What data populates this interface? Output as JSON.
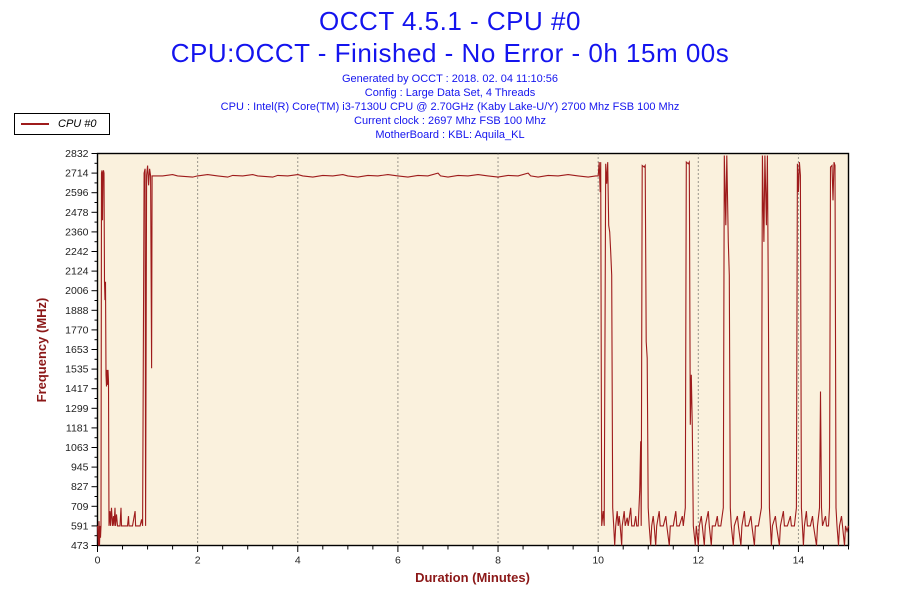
{
  "header": {
    "title": "OCCT 4.5.1 - CPU #0",
    "subtitle": "CPU:OCCT - Finished - No Error - 0h 15m 00s",
    "info_lines": [
      "Generated by OCCT : 2018. 02. 04 11:10:56",
      "Config : Large Data Set, 4 Threads",
      "CPU : Intel(R) Core(TM) i3-7130U CPU @ 2.70GHz (Kaby Lake-U/Y) 2700 Mhz FSB 100 Mhz",
      "Current clock : 2697 Mhz FSB 100 Mhz",
      "MotherBoard : KBL: Aquila_KL"
    ]
  },
  "legend": {
    "series_label": "CPU #0"
  },
  "colors": {
    "accent_blue": "#1414ee",
    "axis_title_red": "#8b1717",
    "line_red": "#9e1b1b",
    "plot_bg": "#faf1dd",
    "grid": "#3a3a3a",
    "axis": "#000000",
    "tick_text": "#222222"
  },
  "chart_data": {
    "type": "line",
    "title": "OCCT 4.5.1 - CPU #0",
    "xlabel": "Duration (Minutes)",
    "ylabel": "Frequency (MHz)",
    "xlim": [
      0,
      15
    ],
    "ylim": [
      473,
      2832
    ],
    "x_major_ticks": [
      0,
      2,
      4,
      6,
      8,
      10,
      12,
      14
    ],
    "x_minor_step": 0.5,
    "y_tick_labels": [
      "473",
      "591",
      "709",
      "827",
      "945",
      "1063",
      "1181",
      "1299",
      "1417",
      "1535",
      "1653",
      "1770",
      "1888",
      "2006",
      "2124",
      "2242",
      "2360",
      "2478",
      "2596",
      "2714",
      "2832"
    ],
    "grid_x": [
      2,
      4,
      6,
      8,
      10,
      12,
      14
    ],
    "grid_on": "x-major-dotted",
    "legend_position": "top-left-outside",
    "series": [
      {
        "name": "CPU #0",
        "color": "#9e1b1b",
        "points": [
          [
            0,
            591
          ],
          [
            0.02,
            473
          ],
          [
            0.03,
            620
          ],
          [
            0.04,
            473
          ],
          [
            0.05,
            591
          ],
          [
            0.06,
            520
          ],
          [
            0.07,
            591
          ],
          [
            0.08,
            2714
          ],
          [
            0.09,
            2730
          ],
          [
            0.1,
            2430
          ],
          [
            0.11,
            2714
          ],
          [
            0.12,
            2730
          ],
          [
            0.13,
            2714
          ],
          [
            0.14,
            2060
          ],
          [
            0.15,
            1950
          ],
          [
            0.16,
            2060
          ],
          [
            0.17,
            1500
          ],
          [
            0.18,
            1430
          ],
          [
            0.19,
            1530
          ],
          [
            0.2,
            1440
          ],
          [
            0.21,
            1530
          ],
          [
            0.22,
            1460
          ],
          [
            0.23,
            591
          ],
          [
            0.25,
            680
          ],
          [
            0.26,
            591
          ],
          [
            0.28,
            700
          ],
          [
            0.3,
            591
          ],
          [
            0.32,
            650
          ],
          [
            0.33,
            591
          ],
          [
            0.35,
            700
          ],
          [
            0.36,
            591
          ],
          [
            0.38,
            660
          ],
          [
            0.4,
            591
          ],
          [
            0.45,
            591
          ],
          [
            0.47,
            700
          ],
          [
            0.48,
            591
          ],
          [
            0.55,
            591
          ],
          [
            0.6,
            591
          ],
          [
            0.62,
            650
          ],
          [
            0.63,
            591
          ],
          [
            0.7,
            591
          ],
          [
            0.75,
            680
          ],
          [
            0.76,
            591
          ],
          [
            0.8,
            591
          ],
          [
            0.85,
            591
          ],
          [
            0.88,
            630
          ],
          [
            0.9,
            591
          ],
          [
            0.93,
            2714
          ],
          [
            0.95,
            2740
          ],
          [
            0.96,
            591
          ],
          [
            0.98,
            2700
          ],
          [
            1.0,
            2760
          ],
          [
            1.02,
            2640
          ],
          [
            1.04,
            2740
          ],
          [
            1.06,
            2697
          ],
          [
            1.08,
            1540
          ],
          [
            1.09,
            2697
          ],
          [
            1.1,
            2697
          ],
          [
            1.3,
            2697
          ],
          [
            1.5,
            2705
          ],
          [
            1.6,
            2697
          ],
          [
            1.9,
            2690
          ],
          [
            2.0,
            2697
          ],
          [
            2.2,
            2705
          ],
          [
            2.4,
            2697
          ],
          [
            2.6,
            2690
          ],
          [
            2.7,
            2700
          ],
          [
            2.9,
            2697
          ],
          [
            3.1,
            2705
          ],
          [
            3.2,
            2697
          ],
          [
            3.5,
            2690
          ],
          [
            3.6,
            2700
          ],
          [
            3.8,
            2697
          ],
          [
            4.0,
            2705
          ],
          [
            4.1,
            2697
          ],
          [
            4.3,
            2690
          ],
          [
            4.5,
            2700
          ],
          [
            4.7,
            2697
          ],
          [
            4.9,
            2705
          ],
          [
            5.0,
            2697
          ],
          [
            5.2,
            2690
          ],
          [
            5.4,
            2700
          ],
          [
            5.6,
            2697
          ],
          [
            5.8,
            2705
          ],
          [
            6.0,
            2697
          ],
          [
            6.2,
            2690
          ],
          [
            6.4,
            2700
          ],
          [
            6.6,
            2697
          ],
          [
            6.8,
            2714
          ],
          [
            6.85,
            2697
          ],
          [
            7.0,
            2690
          ],
          [
            7.2,
            2700
          ],
          [
            7.4,
            2697
          ],
          [
            7.6,
            2705
          ],
          [
            7.8,
            2697
          ],
          [
            8.0,
            2690
          ],
          [
            8.2,
            2700
          ],
          [
            8.4,
            2697
          ],
          [
            8.6,
            2714
          ],
          [
            8.65,
            2697
          ],
          [
            8.8,
            2690
          ],
          [
            9.0,
            2700
          ],
          [
            9.2,
            2697
          ],
          [
            9.4,
            2705
          ],
          [
            9.6,
            2697
          ],
          [
            9.8,
            2690
          ],
          [
            9.95,
            2697
          ],
          [
            10.0,
            2697
          ],
          [
            10.02,
            2780
          ],
          [
            10.04,
            2600
          ],
          [
            10.05,
            2780
          ],
          [
            10.07,
            591
          ],
          [
            10.1,
            680
          ],
          [
            10.12,
            591
          ],
          [
            10.15,
            2770
          ],
          [
            10.17,
            2650
          ],
          [
            10.19,
            2780
          ],
          [
            10.21,
            2400
          ],
          [
            10.23,
            2360
          ],
          [
            10.25,
            2240
          ],
          [
            10.27,
            2100
          ],
          [
            10.29,
            700
          ],
          [
            10.31,
            591
          ],
          [
            10.33,
            473
          ],
          [
            10.35,
            591
          ],
          [
            10.38,
            680
          ],
          [
            10.4,
            591
          ],
          [
            10.42,
            650
          ],
          [
            10.44,
            591
          ],
          [
            10.47,
            473
          ],
          [
            10.48,
            591
          ],
          [
            10.52,
            680
          ],
          [
            10.54,
            591
          ],
          [
            10.58,
            640
          ],
          [
            10.6,
            591
          ],
          [
            10.65,
            700
          ],
          [
            10.67,
            591
          ],
          [
            10.72,
            591
          ],
          [
            10.75,
            650
          ],
          [
            10.77,
            591
          ],
          [
            10.8,
            591
          ],
          [
            10.83,
            800
          ],
          [
            10.85,
            1100
          ],
          [
            10.86,
            591
          ],
          [
            10.88,
            2760
          ],
          [
            10.92,
            2750
          ],
          [
            10.94,
            2760
          ],
          [
            10.96,
            1700
          ],
          [
            10.98,
            1600
          ],
          [
            11.0,
            700
          ],
          [
            11.02,
            591
          ],
          [
            11.05,
            473
          ],
          [
            11.07,
            591
          ],
          [
            11.1,
            650
          ],
          [
            11.12,
            591
          ],
          [
            11.15,
            473
          ],
          [
            11.17,
            591
          ],
          [
            11.22,
            680
          ],
          [
            11.24,
            591
          ],
          [
            11.3,
            591
          ],
          [
            11.35,
            650
          ],
          [
            11.37,
            591
          ],
          [
            11.42,
            473
          ],
          [
            11.44,
            591
          ],
          [
            11.5,
            591
          ],
          [
            11.55,
            680
          ],
          [
            11.57,
            591
          ],
          [
            11.62,
            591
          ],
          [
            11.68,
            650
          ],
          [
            11.7,
            591
          ],
          [
            11.74,
            700
          ],
          [
            11.76,
            2780
          ],
          [
            11.8,
            2770
          ],
          [
            11.82,
            2780
          ],
          [
            11.84,
            1200
          ],
          [
            11.86,
            1500
          ],
          [
            11.88,
            1185
          ],
          [
            11.9,
            591
          ],
          [
            11.94,
            473
          ],
          [
            11.96,
            591
          ],
          [
            12.0,
            473
          ],
          [
            12.02,
            591
          ],
          [
            12.06,
            650
          ],
          [
            12.08,
            591
          ],
          [
            12.12,
            473
          ],
          [
            12.14,
            591
          ],
          [
            12.2,
            680
          ],
          [
            12.22,
            591
          ],
          [
            12.26,
            473
          ],
          [
            12.28,
            591
          ],
          [
            12.34,
            591
          ],
          [
            12.38,
            650
          ],
          [
            12.4,
            591
          ],
          [
            12.45,
            591
          ],
          [
            12.5,
            700
          ],
          [
            12.52,
            2820
          ],
          [
            12.55,
            2400
          ],
          [
            12.57,
            2820
          ],
          [
            12.6,
            2300
          ],
          [
            12.62,
            2100
          ],
          [
            12.64,
            700
          ],
          [
            12.66,
            591
          ],
          [
            12.7,
            473
          ],
          [
            12.72,
            591
          ],
          [
            12.78,
            650
          ],
          [
            12.8,
            591
          ],
          [
            12.85,
            473
          ],
          [
            12.87,
            591
          ],
          [
            12.92,
            680
          ],
          [
            12.94,
            591
          ],
          [
            13.0,
            591
          ],
          [
            13.05,
            650
          ],
          [
            13.07,
            591
          ],
          [
            13.12,
            473
          ],
          [
            13.14,
            591
          ],
          [
            13.2,
            591
          ],
          [
            13.26,
            700
          ],
          [
            13.28,
            2820
          ],
          [
            13.31,
            2300
          ],
          [
            13.33,
            2820
          ],
          [
            13.36,
            2400
          ],
          [
            13.38,
            2820
          ],
          [
            13.4,
            1900
          ],
          [
            13.42,
            700
          ],
          [
            13.44,
            591
          ],
          [
            13.46,
            473
          ],
          [
            13.48,
            591
          ],
          [
            13.54,
            650
          ],
          [
            13.56,
            591
          ],
          [
            13.62,
            473
          ],
          [
            13.64,
            591
          ],
          [
            13.7,
            680
          ],
          [
            13.72,
            591
          ],
          [
            13.78,
            591
          ],
          [
            13.84,
            650
          ],
          [
            13.86,
            591
          ],
          [
            13.92,
            591
          ],
          [
            13.96,
            700
          ],
          [
            13.98,
            2770
          ],
          [
            14.0,
            2600
          ],
          [
            14.02,
            2780
          ],
          [
            14.04,
            2700
          ],
          [
            14.06,
            700
          ],
          [
            14.08,
            591
          ],
          [
            14.1,
            473
          ],
          [
            14.12,
            591
          ],
          [
            14.16,
            680
          ],
          [
            14.18,
            591
          ],
          [
            14.24,
            591
          ],
          [
            14.28,
            650
          ],
          [
            14.3,
            591
          ],
          [
            14.36,
            473
          ],
          [
            14.38,
            591
          ],
          [
            14.42,
            700
          ],
          [
            14.44,
            1400
          ],
          [
            14.46,
            700
          ],
          [
            14.48,
            591
          ],
          [
            14.54,
            650
          ],
          [
            14.56,
            591
          ],
          [
            14.6,
            591
          ],
          [
            14.62,
            700
          ],
          [
            14.64,
            2750
          ],
          [
            14.67,
            2760
          ],
          [
            14.69,
            2550
          ],
          [
            14.71,
            2780
          ],
          [
            14.73,
            2760
          ],
          [
            14.75,
            700
          ],
          [
            14.77,
            591
          ],
          [
            14.8,
            473
          ],
          [
            14.82,
            591
          ],
          [
            14.86,
            650
          ],
          [
            14.88,
            591
          ],
          [
            14.92,
            473
          ],
          [
            14.94,
            591
          ],
          [
            14.97,
            560
          ],
          [
            15.0,
            591
          ]
        ]
      }
    ]
  }
}
